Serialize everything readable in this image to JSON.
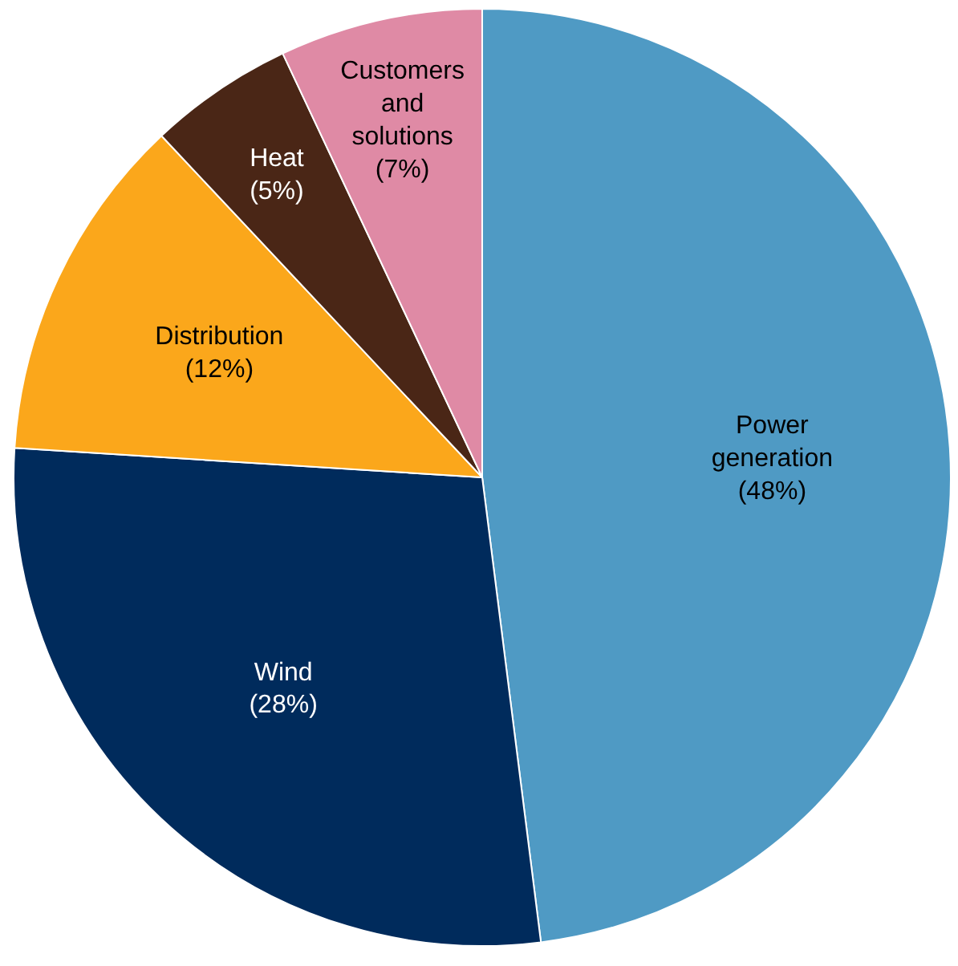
{
  "chart_data": {
    "type": "pie",
    "categories": [
      "Power generation",
      "Wind",
      "Distribution",
      "Heat",
      "Customers and solutions"
    ],
    "values": [
      48,
      28,
      12,
      5,
      7
    ],
    "colors": [
      "#4f9ac4",
      "#002b5c",
      "#fba71b",
      "#4a2616",
      "#df8aa5"
    ],
    "value_labels": [
      "(48%)",
      "(28%)",
      "(12%)",
      "(5%)",
      "(7%)"
    ]
  }
}
